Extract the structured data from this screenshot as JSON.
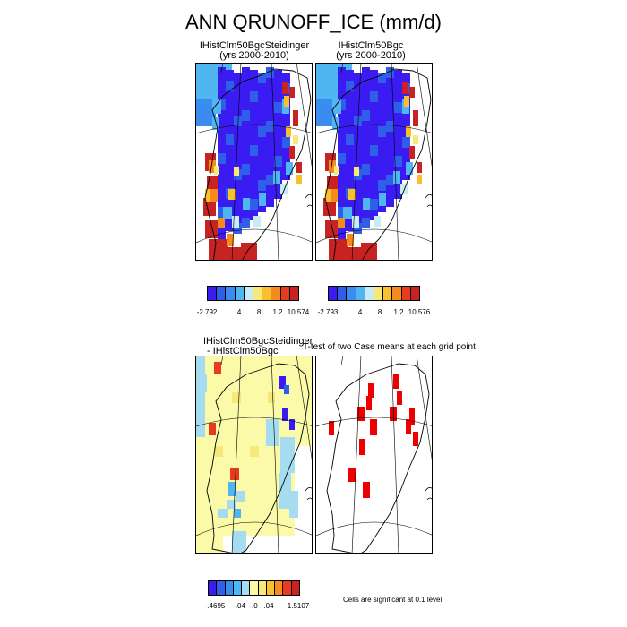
{
  "title": "ANN QRUNOFF_ICE (mm/d)",
  "panels": {
    "top_left": {
      "line1": "IHistClm50BgcSteidinger",
      "line2": "(yrs 2000-2010)"
    },
    "top_right": {
      "line1": "IHistClm50Bgc",
      "line2": "(yrs 2000-2010)"
    },
    "diff": {
      "line1": "IHistClm50BgcSteidinger",
      "line2": "- IHistClm50Bgc"
    },
    "ttest": {
      "title": "T-test of two Case means at each grid point",
      "note": "Cells are significant at 0.1 level"
    }
  },
  "colorbars": {
    "top_left": {
      "labels": [
        "-2.792",
        ".4",
        ".8",
        "1.2",
        "10.574"
      ]
    },
    "top_right": {
      "labels": [
        "-2.793",
        ".4",
        ".8",
        "1.2",
        "10.576"
      ]
    },
    "diff": {
      "labels": [
        "-.4695",
        "-.04",
        "-.0",
        ".04",
        "1.5107"
      ]
    }
  },
  "colors": {
    "abs_scale": [
      "#3a1cf2",
      "#2f5ee8",
      "#3b8cf0",
      "#4fb6f2",
      "#c8ecf7",
      "#f7e87a",
      "#f9c02e",
      "#f58a1e",
      "#e83a1e",
      "#c82323"
    ],
    "diff_scale": [
      "#3a1cf2",
      "#2f5ee8",
      "#3b8cf0",
      "#4fb6f2",
      "#a5dcf0",
      "#fafaa8",
      "#f7e87a",
      "#f9c02e",
      "#f58a1e",
      "#e83a1e",
      "#c82323"
    ],
    "significant": "#ee0000"
  }
}
